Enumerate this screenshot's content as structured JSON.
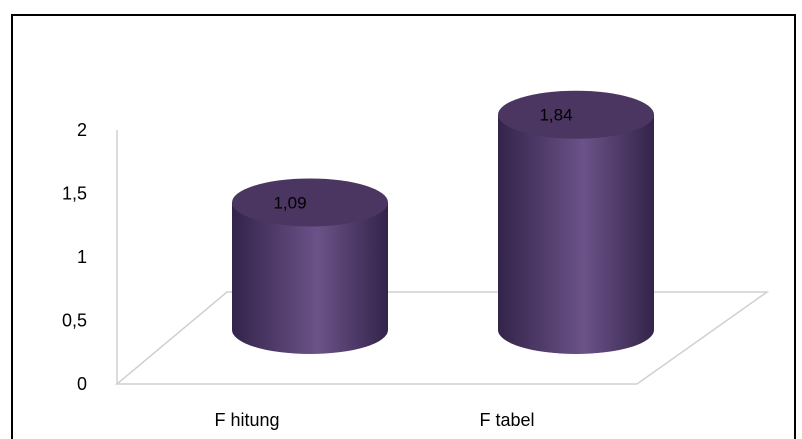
{
  "chart_data": {
    "type": "bar",
    "style": "3d-cylinder",
    "categories": [
      "F  hitung",
      "F  tabel"
    ],
    "values": [
      1.09,
      1.84
    ],
    "value_labels": [
      "1,09",
      "1,84"
    ],
    "y_ticks": [
      "0",
      "0,5",
      "1",
      "1,5",
      "2"
    ],
    "ylim": [
      0,
      2
    ],
    "title": "",
    "xlabel": "",
    "ylabel": "",
    "grid": false,
    "legend": "none",
    "colors": {
      "bar": "#5e4577",
      "bar_dark": "#33244a",
      "bar_light": "#6b5288",
      "bar_top": "#4a3660",
      "axis": "#d0d0d0",
      "frame": "#000000"
    }
  }
}
